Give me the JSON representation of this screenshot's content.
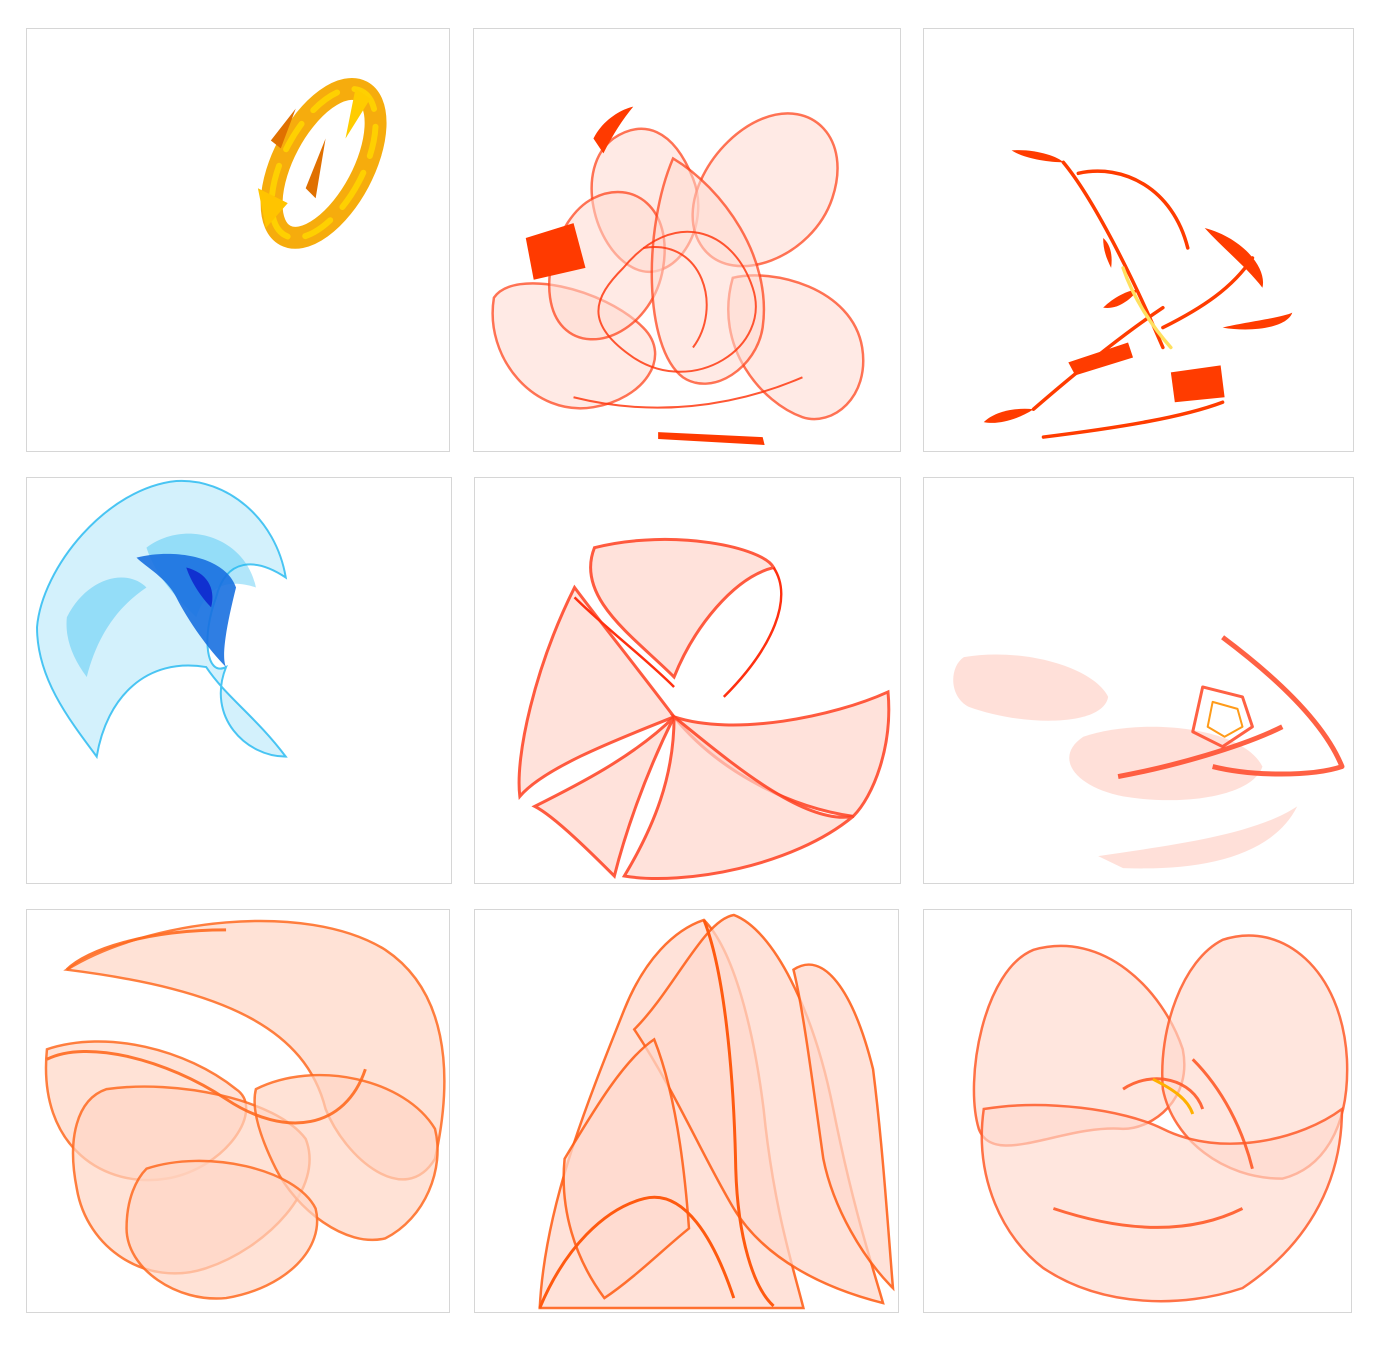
{
  "gallery": {
    "tiles": [
      {
        "id": "t1",
        "subject": "strange-attractor",
        "palette": {
          "main": "#f5a800",
          "accent": "#ffd400",
          "dark": "#e07000"
        }
      },
      {
        "id": "t2",
        "subject": "strange-attractor",
        "palette": {
          "main": "#ff3a10",
          "light": "#ffd8d0"
        }
      },
      {
        "id": "t3",
        "subject": "strange-attractor",
        "palette": {
          "main": "#ff3c00",
          "accent": "#ffe060"
        }
      },
      {
        "id": "t4",
        "subject": "strange-attractor",
        "palette": {
          "main": "#20b8f0",
          "light": "#c8eefb",
          "dark": "#1030d0"
        }
      },
      {
        "id": "t5",
        "subject": "strange-attractor",
        "palette": {
          "main": "#ff4020",
          "light": "#ffd6cc"
        }
      },
      {
        "id": "t6",
        "subject": "strange-attractor",
        "palette": {
          "main": "#ff5030",
          "light": "#ffd8d0",
          "accent": "#ff9000"
        }
      },
      {
        "id": "t7",
        "subject": "strange-attractor",
        "palette": {
          "main": "#ff6a20",
          "light": "#ffd6c4"
        }
      },
      {
        "id": "t8",
        "subject": "strange-attractor",
        "palette": {
          "main": "#ff5a10",
          "light": "#ffd8cc"
        }
      },
      {
        "id": "t9",
        "subject": "strange-attractor",
        "palette": {
          "main": "#ff5a28",
          "light": "#ffd8cc",
          "accent": "#ffb000"
        }
      }
    ]
  }
}
